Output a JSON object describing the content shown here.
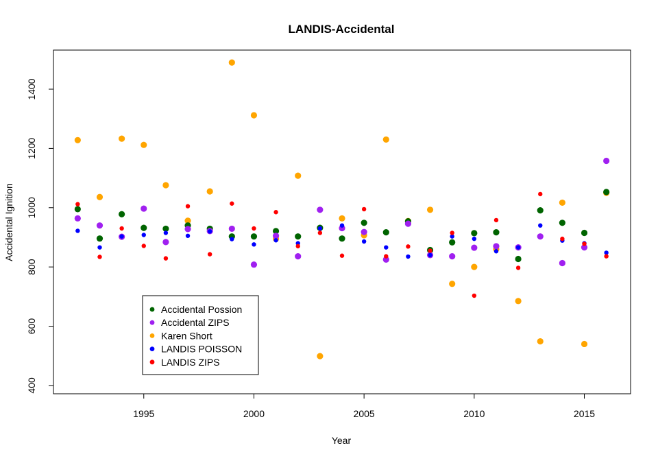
{
  "chart_data": {
    "type": "scatter",
    "title": "LANDIS-Accidental",
    "xlabel": "Year",
    "ylabel": "Accidental Ignition",
    "xlim": [
      1990.9,
      2017.1
    ],
    "ylim": [
      372,
      1532
    ],
    "x_ticks": [
      1995,
      2000,
      2005,
      2010,
      2015
    ],
    "y_ticks": [
      400,
      600,
      800,
      1000,
      1200,
      1400
    ],
    "grid": false,
    "legend_position": "bottom-left",
    "x": [
      1992,
      1993,
      1994,
      1995,
      1996,
      1997,
      1998,
      1999,
      2000,
      2001,
      2002,
      2003,
      2004,
      2005,
      2006,
      2007,
      2008,
      2009,
      2010,
      2011,
      2012,
      2013,
      2014,
      2015,
      2016
    ],
    "series": [
      {
        "name": "Karen Short",
        "color": "#FFA500",
        "marker": "large",
        "values": [
          1228,
          1036,
          1233,
          1212,
          1076,
          956,
          1055,
          1490,
          1312,
          895,
          1108,
          499,
          964,
          907,
          1230,
          955,
          993,
          743,
          800,
          860,
          685,
          549,
          1017,
          540,
          1050
        ]
      },
      {
        "name": "Accidental Possion",
        "color": "#006400",
        "marker": "large",
        "values": [
          995,
          896,
          978,
          932,
          929,
          940,
          929,
          903,
          903,
          921,
          903,
          932,
          896,
          949,
          917,
          954,
          857,
          883,
          914,
          917,
          827,
          991,
          949,
          915,
          1053
        ]
      },
      {
        "name": "Accidental ZIPS",
        "color": "#A020F0",
        "marker": "large",
        "values": [
          964,
          940,
          902,
          997,
          884,
          928,
          921,
          929,
          808,
          905,
          836,
          993,
          931,
          918,
          825,
          946,
          840,
          836,
          865,
          870,
          866,
          903,
          813,
          866,
          1158
        ]
      },
      {
        "name": "LANDIS POISSON",
        "color": "#0000FF",
        "marker": "small",
        "values": [
          922,
          866,
          903,
          908,
          915,
          905,
          920,
          894,
          876,
          890,
          880,
          930,
          940,
          886,
          866,
          835,
          840,
          903,
          895,
          853,
          866,
          940,
          889,
          880,
          848
        ]
      },
      {
        "name": "LANDIS ZIPS",
        "color": "#FF0000",
        "marker": "small",
        "values": [
          1012,
          834,
          930,
          871,
          829,
          1005,
          843,
          1014,
          930,
          985,
          870,
          915,
          838,
          995,
          836,
          869,
          855,
          915,
          703,
          958,
          797,
          1046,
          895,
          878,
          836
        ]
      }
    ],
    "legend_order": [
      "Accidental Possion",
      "Accidental ZIPS",
      "Karen Short",
      "LANDIS POISSON",
      "LANDIS ZIPS"
    ]
  }
}
